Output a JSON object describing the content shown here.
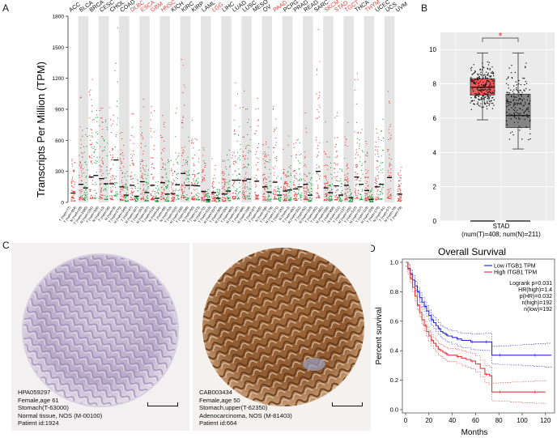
{
  "panels": {
    "a": "A",
    "b": "B",
    "c": "C",
    "d": "D"
  },
  "chart_data": [
    {
      "panel": "A",
      "type": "scatter",
      "title": "",
      "ylabel": "Transcripts Per Million (TPM)",
      "ylim": [
        0,
        1800
      ],
      "yticks": [
        "0",
        "300",
        "600",
        "900",
        "1200",
        "1500",
        "1800"
      ],
      "highlight_color": "#e8423c",
      "normal_color": "#111111",
      "tumor_color": "#e8423c",
      "healthy_color": "#1e9c3a",
      "cancers": [
        {
          "name": "ACC",
          "hl": false,
          "tum": 90,
          "nor": null
        },
        {
          "name": "BLCA",
          "hl": false,
          "tum": 175,
          "nor": 140
        },
        {
          "name": "BRCA",
          "hl": false,
          "tum": 245,
          "nor": 260
        },
        {
          "name": "CESC",
          "hl": false,
          "tum": 230,
          "nor": 180
        },
        {
          "name": "CHOL",
          "hl": false,
          "tum": 180,
          "nor": 410
        },
        {
          "name": "COAD",
          "hl": false,
          "tum": 150,
          "nor": 70
        },
        {
          "name": "DLBC",
          "hl": true,
          "tum": 165,
          "nor": 60
        },
        {
          "name": "ESCA",
          "hl": true,
          "tum": 200,
          "nor": 95
        },
        {
          "name": "GBM",
          "hl": true,
          "tum": 165,
          "nor": 40
        },
        {
          "name": "HNSC",
          "hl": true,
          "tum": 190,
          "nor": 80
        },
        {
          "name": "KICH",
          "hl": false,
          "tum": 85,
          "nor": 170
        },
        {
          "name": "KIRC",
          "hl": false,
          "tum": 280,
          "nor": 165
        },
        {
          "name": "KIRP",
          "hl": false,
          "tum": 165,
          "nor": 160
        },
        {
          "name": "LAML",
          "hl": false,
          "tum": 105,
          "nor": 25
        },
        {
          "name": "LGG",
          "hl": true,
          "tum": 95,
          "nor": 40
        },
        {
          "name": "LIHC",
          "hl": false,
          "tum": 80,
          "nor": 110
        },
        {
          "name": "LUAD",
          "hl": false,
          "tum": 215,
          "nor": 215
        },
        {
          "name": "LUSC",
          "hl": false,
          "tum": 210,
          "nor": 225
        },
        {
          "name": "MESO",
          "hl": false,
          "tum": 205,
          "nor": null
        },
        {
          "name": "OV",
          "hl": false,
          "tum": 150,
          "nor": 100
        },
        {
          "name": "PAAD",
          "hl": true,
          "tum": 195,
          "nor": 70
        },
        {
          "name": "PCPG",
          "hl": false,
          "tum": 110,
          "nor": 120
        },
        {
          "name": "PRAD",
          "hl": false,
          "tum": 130,
          "nor": 150
        },
        {
          "name": "READ",
          "hl": false,
          "tum": 175,
          "nor": 70
        },
        {
          "name": "SARC",
          "hl": false,
          "tum": 300,
          "nor": null
        },
        {
          "name": "SKCM",
          "hl": true,
          "tum": 140,
          "nor": 95
        },
        {
          "name": "STAD",
          "hl": true,
          "tum": 160,
          "nor": 70
        },
        {
          "name": "TGCT",
          "hl": true,
          "tum": 165,
          "nor": 45
        },
        {
          "name": "THCA",
          "hl": false,
          "tum": 245,
          "nor": 175
        },
        {
          "name": "THYM",
          "hl": true,
          "tum": 115,
          "nor": 30
        },
        {
          "name": "UCEC",
          "hl": false,
          "tum": 150,
          "nor": 175
        },
        {
          "name": "UCS",
          "hl": false,
          "tum": 240,
          "nor": null
        },
        {
          "name": "UVM",
          "hl": false,
          "tum": 80,
          "nor": null
        }
      ],
      "xtick_labels": [
        "T (num=77)",
        "T (num=404)",
        "N (num=28)",
        "T (num=1085)",
        "N (num=291)",
        "T (num=306)",
        "N (num=13)",
        "T (num=36)",
        "N (num=9)",
        "T (num=275)",
        "N (num=349)",
        "T (num=47)",
        "N (num=337)",
        "T (num=163)",
        "N (num=207)",
        "T (num=519)",
        "N (num=44)",
        "T (num=66)",
        "N (num=53)",
        "T (num=523)",
        "N (num=100)",
        "T (num=286)",
        "N (num=60)",
        "T (num=173)",
        "N (num=70)",
        "T (num=518)",
        "N (num=207)",
        "T (num=369)",
        "N (num=160)",
        "T (num=483)",
        "N (num=347)",
        "T (num=486)",
        "N (num=338)",
        "T (num=87)",
        "T (num=426)",
        "N (num=88)",
        "T (num=179)",
        "N (num=171)",
        "T (num=182)",
        "N (num=3)",
        "T (num=492)",
        "N (num=152)",
        "T (num=92)",
        "N (num=318)",
        "T (num=262)",
        "T (num=461)",
        "N (num=558)",
        "T (num=408)",
        "N (num=211)",
        "T (num=137)",
        "N (num=165)",
        "T (num=512)",
        "N (num=337)",
        "T (num=118)",
        "N (num=339)",
        "T (num=174)",
        "N (num=91)",
        "T (num=57)",
        "N (num=78)",
        "T (num=79)"
      ]
    },
    {
      "panel": "B",
      "type": "box",
      "group_label": "STAD",
      "group_sub": "(num(T)=408; num(N)=211)",
      "ylim": [
        0,
        11
      ],
      "yticks": [
        "0",
        "2",
        "4",
        "6",
        "8",
        "10"
      ],
      "significance": "*",
      "tumor": {
        "color": "#ee5a5a",
        "q1": 7.35,
        "median": 7.8,
        "q3": 8.3,
        "whisker_low": 5.9,
        "whisker_high": 9.8
      },
      "normal": {
        "color": "#858585",
        "q1": 5.45,
        "median": 6.15,
        "q3": 7.4,
        "whisker_low": 4.2,
        "whisker_high": 9.8
      }
    },
    {
      "panel": "D",
      "type": "line",
      "title": "Overall Survival",
      "xlabel": "Months",
      "ylabel": "Percent survival",
      "xlim": [
        0,
        125
      ],
      "ylim": [
        0,
        1.0
      ],
      "xticks": [
        "0",
        "20",
        "40",
        "60",
        "80",
        "100",
        "120"
      ],
      "yticks": [
        "0.0",
        "0.2",
        "0.4",
        "0.6",
        "0.8",
        "1.0"
      ],
      "legend": [
        "Low ITGB1 TPM",
        "High ITGB1 TPM"
      ],
      "stats": [
        "Logrank p=0.031",
        "HR(high)=1.4",
        "p(HR)=0.032",
        "n(high)=192",
        "n(low)=192"
      ],
      "series": [
        {
          "name": "Low ITGB1 TPM",
          "color": "#2a2adf",
          "x": [
            0,
            2,
            4,
            6,
            8,
            10,
            12,
            14,
            16,
            18,
            20,
            22,
            24,
            26,
            28,
            30,
            32,
            34,
            36,
            40,
            44,
            48,
            52,
            56,
            60,
            64,
            68,
            72,
            74,
            80,
            90,
            100,
            110,
            120,
            125
          ],
          "y": [
            1.0,
            0.96,
            0.92,
            0.88,
            0.84,
            0.8,
            0.76,
            0.73,
            0.7,
            0.67,
            0.64,
            0.61,
            0.59,
            0.57,
            0.55,
            0.53,
            0.52,
            0.51,
            0.5,
            0.49,
            0.48,
            0.47,
            0.47,
            0.46,
            0.46,
            0.46,
            0.46,
            0.46,
            0.37,
            0.37,
            0.37,
            0.37,
            0.37,
            0.37,
            0.37
          ]
        },
        {
          "name": "High ITGB1 TPM",
          "color": "#e23a3a",
          "x": [
            0,
            2,
            4,
            6,
            8,
            10,
            12,
            14,
            16,
            18,
            20,
            22,
            24,
            26,
            28,
            30,
            32,
            34,
            36,
            40,
            44,
            48,
            52,
            56,
            60,
            64,
            68,
            72,
            74,
            80,
            90,
            100,
            110,
            120
          ],
          "y": [
            1.0,
            0.95,
            0.89,
            0.83,
            0.77,
            0.71,
            0.66,
            0.61,
            0.57,
            0.53,
            0.5,
            0.47,
            0.45,
            0.43,
            0.41,
            0.4,
            0.39,
            0.38,
            0.37,
            0.37,
            0.36,
            0.35,
            0.34,
            0.33,
            0.31,
            0.28,
            0.24,
            0.23,
            0.12,
            0.12,
            0.12,
            0.12,
            0.12,
            0.12
          ]
        }
      ]
    }
  ],
  "ihc_left": {
    "lines": [
      "HPA059297",
      "Female,age 61",
      "Stomach(T-63000)",
      "Normal tissue, NOS (M-00100)",
      "Patient id:1924"
    ]
  },
  "ihc_right": {
    "lines": [
      "CAB003434",
      "Female,age 50",
      "Stomach,upper(T-62350)",
      "Adenocarcinoma, NOS (M-81403)",
      "Patient id:664"
    ]
  }
}
